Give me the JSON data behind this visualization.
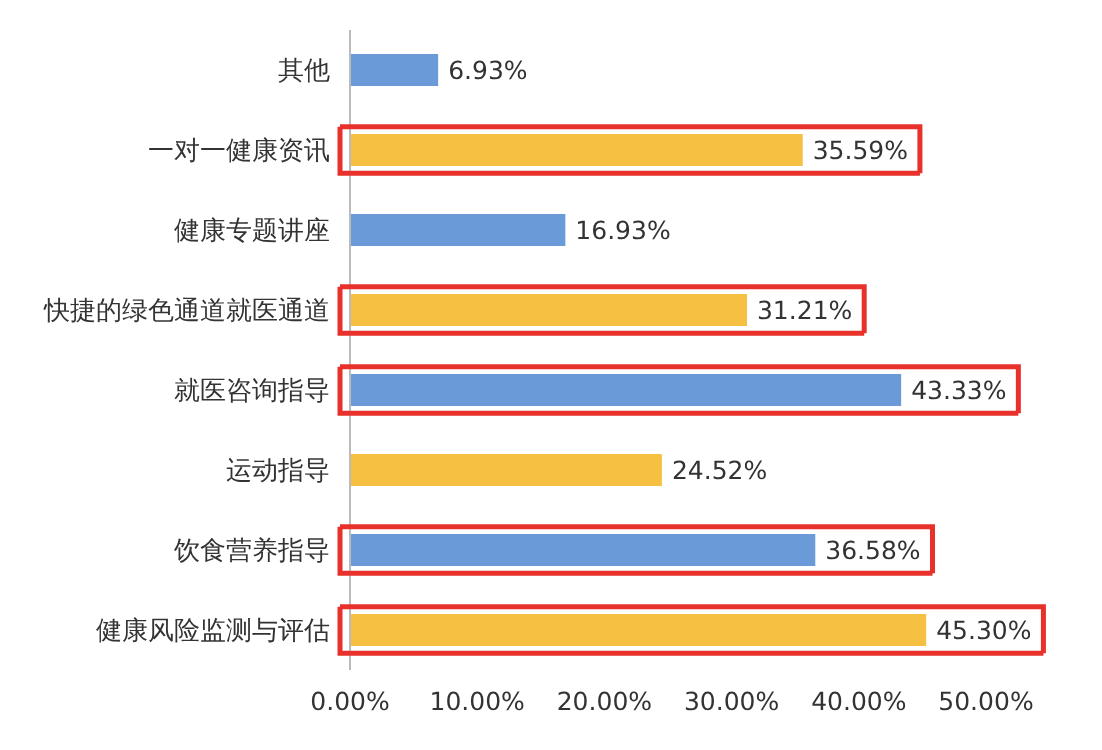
{
  "chart_data": {
    "type": "bar",
    "orientation": "horizontal",
    "categories": [
      "其他",
      "一对一健康资讯",
      "健康专题讲座",
      "快捷的绿色通道就医通道",
      "就医咨询指导",
      "运动指导",
      "饮食营养指导",
      "健康风险监测与评估"
    ],
    "values": [
      6.93,
      35.59,
      16.93,
      31.21,
      43.33,
      24.52,
      36.58,
      45.3
    ],
    "colors": [
      "#6a9bd8",
      "#f6c042",
      "#6a9bd8",
      "#f6c042",
      "#6a9bd8",
      "#f6c042",
      "#6a9bd8",
      "#f6c042"
    ],
    "value_labels": [
      "6.93%",
      "35.59%",
      "16.93%",
      "31.21%",
      "43.33%",
      "24.52%",
      "36.58%",
      "45.30%"
    ],
    "xlim": [
      0,
      50
    ],
    "xticks": [
      {
        "value": 0,
        "label": "0.00%"
      },
      {
        "value": 10,
        "label": "10.00%"
      },
      {
        "value": 20,
        "label": "20.00%"
      },
      {
        "value": 30,
        "label": "30.00%"
      },
      {
        "value": 40,
        "label": "40.00%"
      },
      {
        "value": 50,
        "label": "50.00%"
      }
    ]
  }
}
